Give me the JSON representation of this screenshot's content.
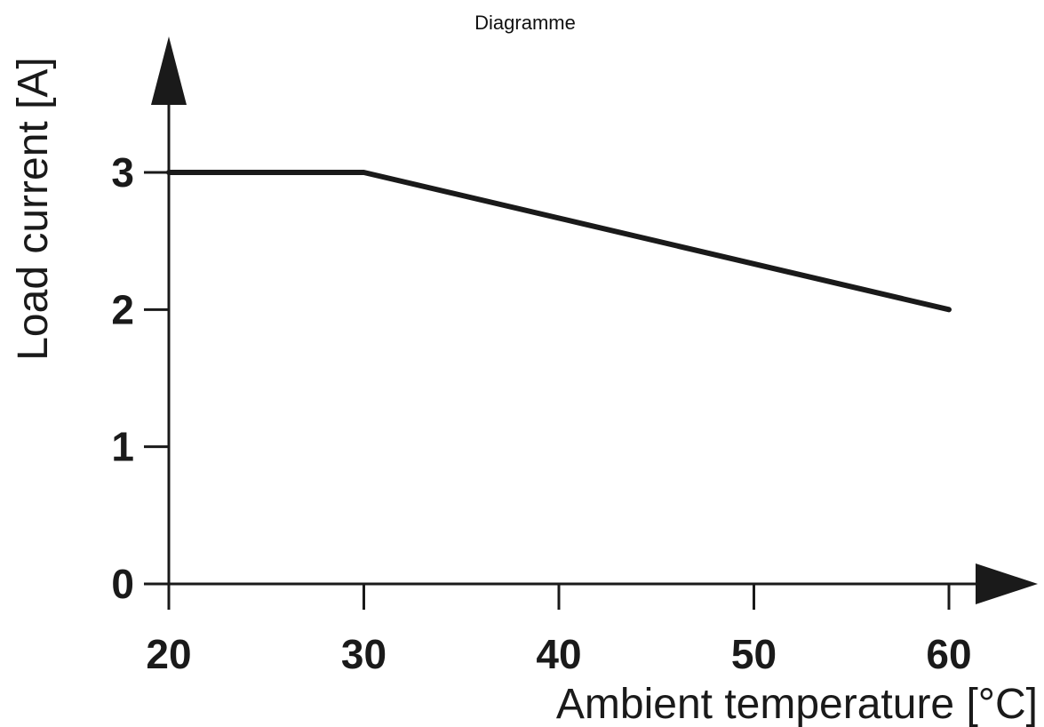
{
  "chart_data": {
    "type": "line",
    "title": "Diagramme",
    "xlabel": "Ambient temperature [°C]",
    "ylabel": "Load current [A]",
    "xlim": [
      20,
      60
    ],
    "ylim": [
      0,
      3
    ],
    "x_ticks": [
      20,
      30,
      40,
      50,
      60
    ],
    "y_ticks": [
      0,
      1,
      2,
      3
    ],
    "grid": false,
    "legend": "none",
    "series": [
      {
        "x": [
          20,
          30,
          60
        ],
        "y": [
          3,
          3,
          2
        ]
      }
    ],
    "colors": {
      "line": "#1a1a1a",
      "axis": "#1a1a1a"
    }
  }
}
